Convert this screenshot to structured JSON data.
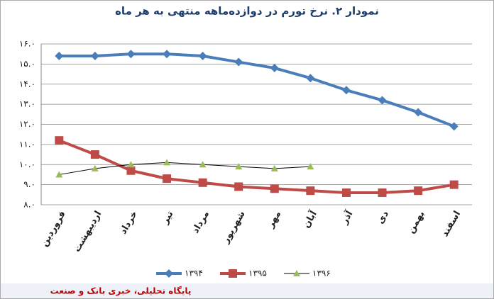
{
  "chart_data": {
    "type": "line",
    "title": "نمودار ۲. نرخ تورم در دوازده‌ماهه منتهی به هر ماه",
    "categories": [
      "فروردین",
      "اردیبهشت",
      "خرداد",
      "تیر",
      "مرداد",
      "شهریور",
      "مهر",
      "آبان",
      "آذر",
      "دی",
      "بهمن",
      "اسفند"
    ],
    "series": [
      {
        "name": "۱۳۹۴",
        "color": "#4a7ebb",
        "marker": "diamond",
        "values": [
          15.4,
          15.4,
          15.5,
          15.5,
          15.4,
          15.1,
          14.8,
          14.3,
          13.7,
          13.2,
          12.6,
          11.9
        ]
      },
      {
        "name": "۱۳۹۵",
        "color": "#be4b48",
        "marker": "square",
        "values": [
          11.2,
          10.5,
          9.7,
          9.3,
          9.1,
          8.9,
          8.8,
          8.7,
          8.6,
          8.6,
          8.7,
          9.0
        ]
      },
      {
        "name": "۱۳۹۶",
        "color": "#000000",
        "marker": "triangle",
        "marker_color": "#9bbb59",
        "values": [
          9.5,
          9.8,
          10.0,
          10.1,
          10.0,
          9.9,
          9.8,
          9.9,
          null,
          null,
          null,
          null
        ]
      }
    ],
    "ylim": [
      8,
      16
    ],
    "yticks": [
      {
        "value": 8,
        "label": "۸.۰"
      },
      {
        "value": 9,
        "label": "۹.۰"
      },
      {
        "value": 10,
        "label": "۱۰.۰"
      },
      {
        "value": 11,
        "label": "۱۱.۰"
      },
      {
        "value": 12,
        "label": "۱۲.۰"
      },
      {
        "value": 13,
        "label": "۱۳.۰"
      },
      {
        "value": 14,
        "label": "۱۴.۰"
      },
      {
        "value": 15,
        "label": "۱۵.۰"
      },
      {
        "value": 16,
        "label": "۱۶.۰"
      }
    ],
    "grid": true,
    "legend": "bottom",
    "footer": "پایگاه تحلیلی، خبری بانک و صنعت"
  }
}
